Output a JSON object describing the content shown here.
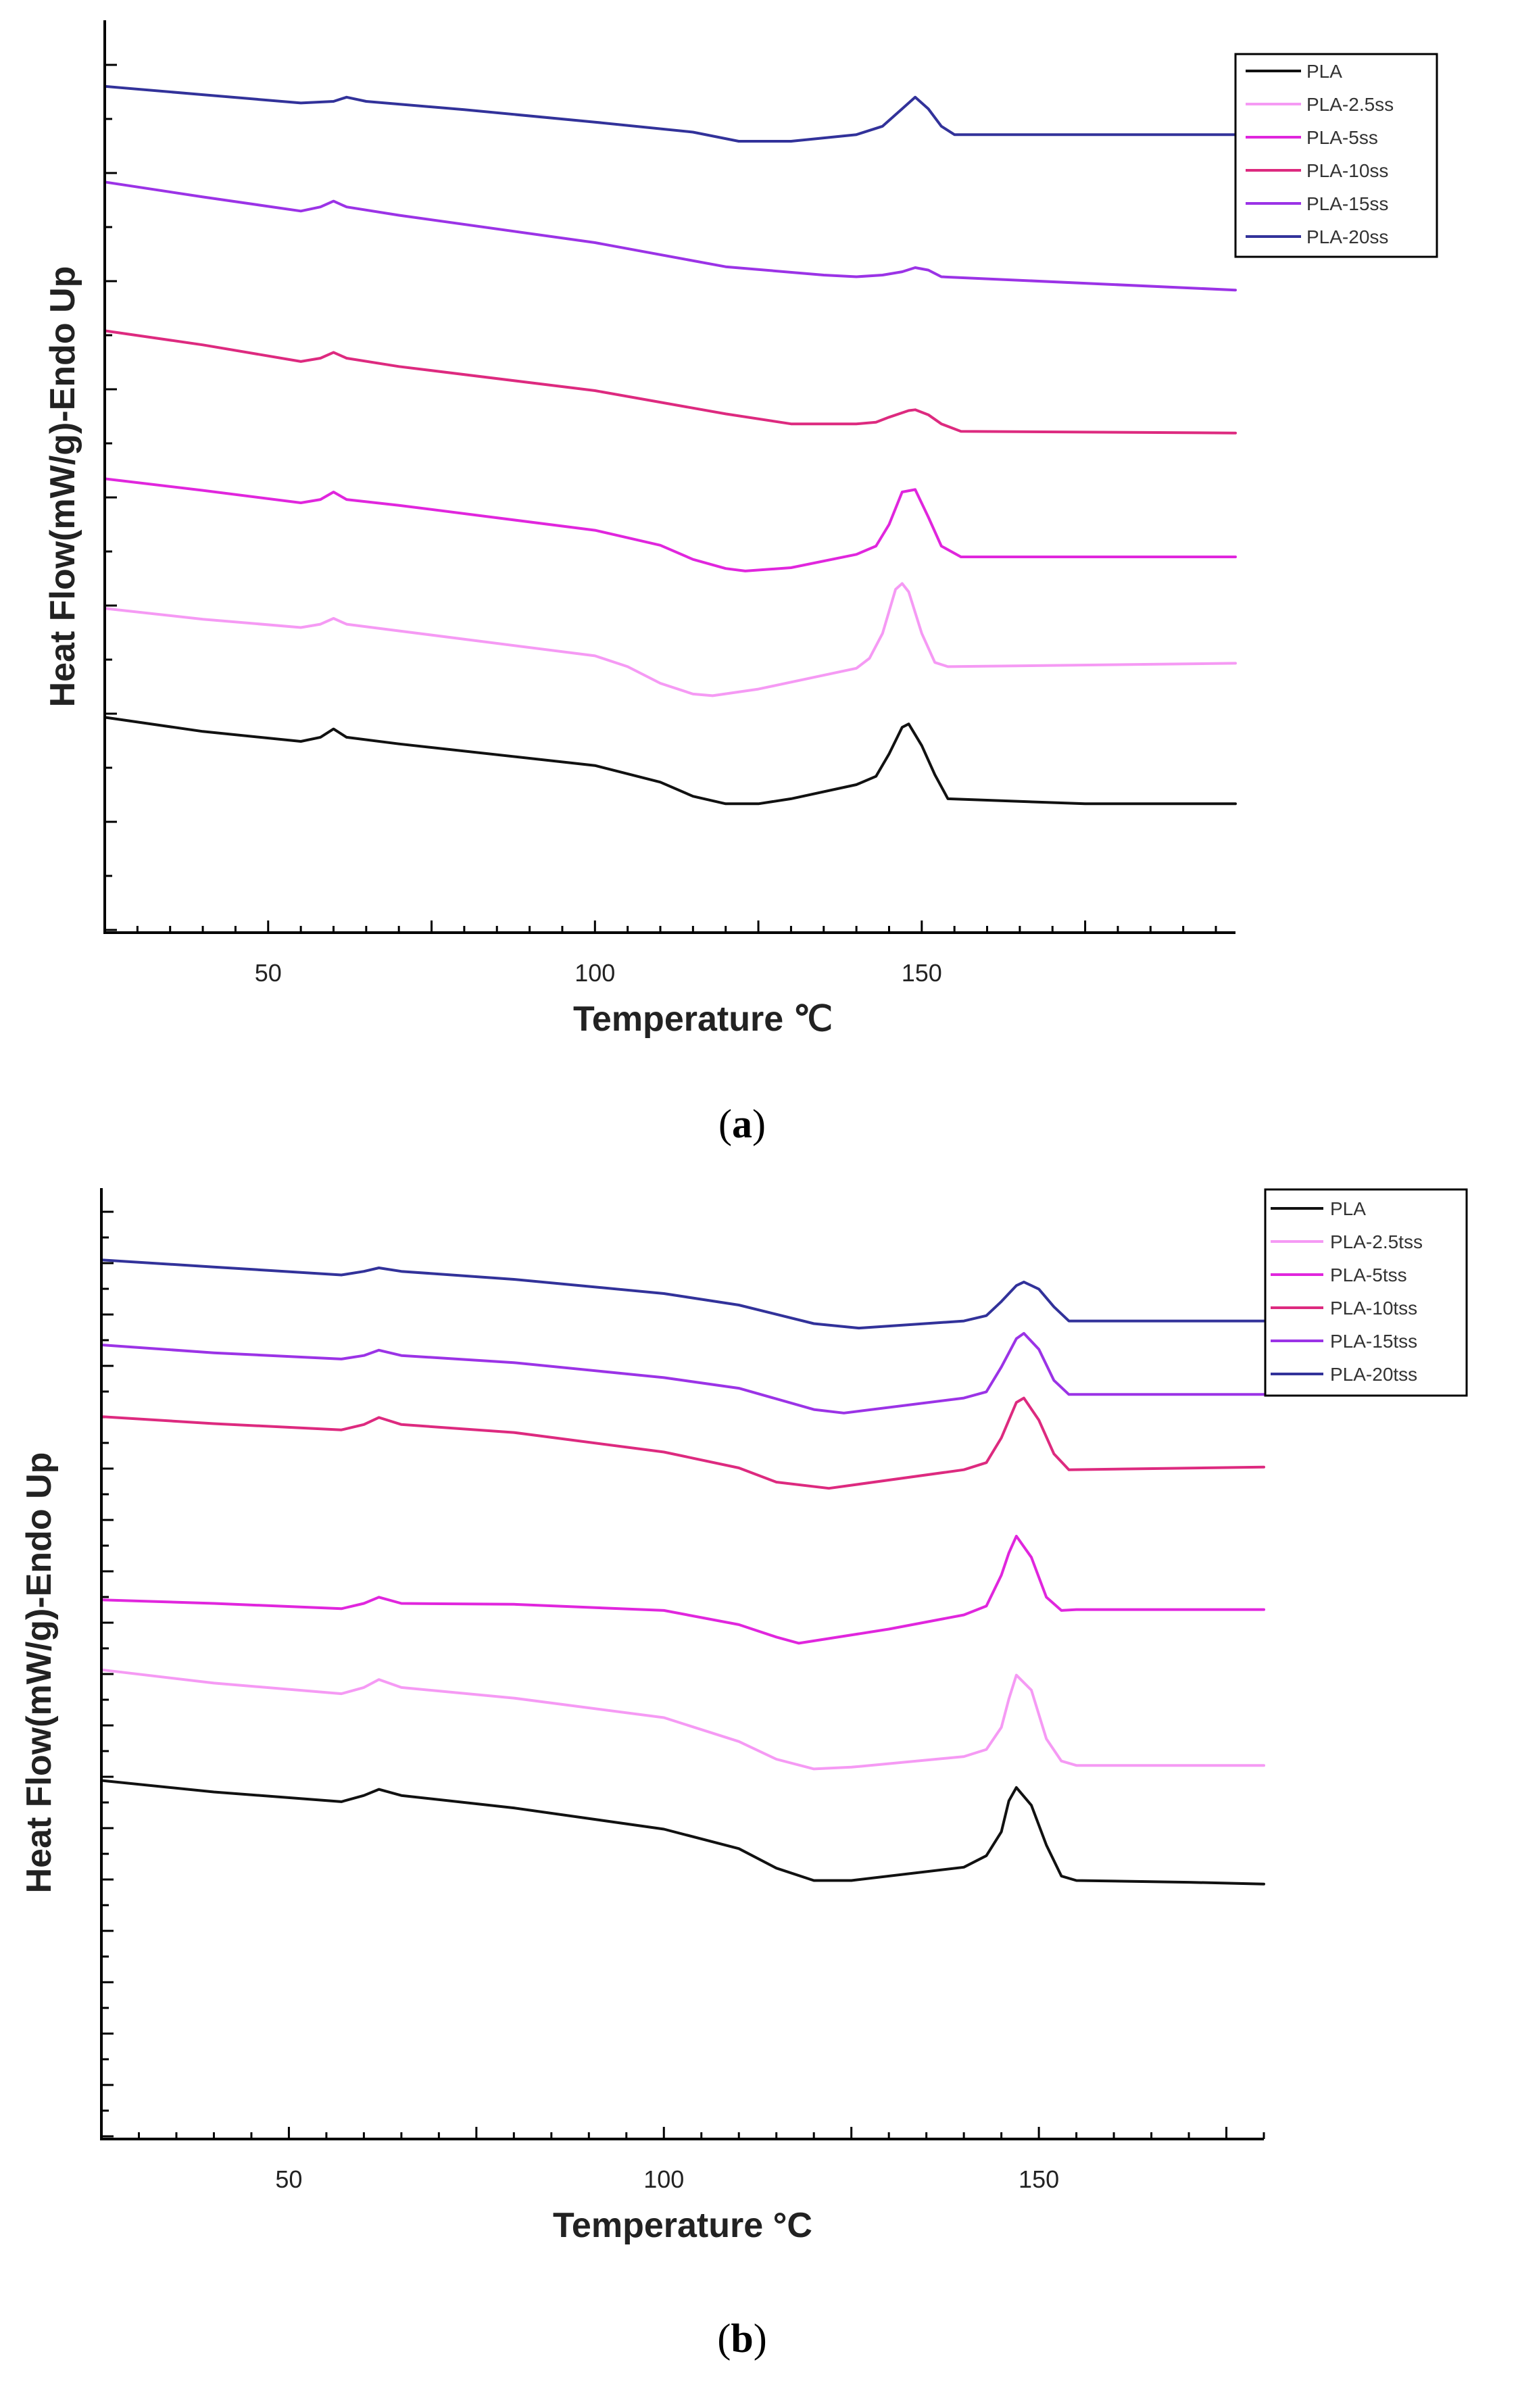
{
  "colors": {
    "PLA": "#111111",
    "PLA-2.5": "#f59af4",
    "PLA-5": "#e026dd",
    "PLA-10": "#dd2a7f",
    "PLA-15": "#9b33e6",
    "PLA-20": "#32329a"
  },
  "chart_data": [
    {
      "panel": "a",
      "panel_label": "a",
      "type": "line",
      "xlabel": "Temperature ℃",
      "ylabel": "Heat Flow(mW/g)-Endo Up",
      "xlim": [
        25,
        198
      ],
      "ylim": [
        0,
        100
      ],
      "x_ticks": [
        50,
        100,
        150
      ],
      "x_tick_labels": [
        "50",
        "100",
        "150"
      ],
      "y_ticks_note": "unlabeled minor ticks",
      "legend_position": "top-right",
      "series": [
        {
          "name": "PLA-20ss",
          "color_key": "PLA-20",
          "x": [
            25,
            40,
            55,
            60,
            62,
            65,
            80,
            100,
            115,
            122,
            130,
            140,
            144,
            147,
            149,
            151,
            153,
            155,
            198
          ],
          "y": [
            95.3,
            94.3,
            93.3,
            93.5,
            94.0,
            93.5,
            92.5,
            91.0,
            89.8,
            88.7,
            88.7,
            89.5,
            90.5,
            92.6,
            94.0,
            92.6,
            90.5,
            89.5,
            89.5
          ]
        },
        {
          "name": "PLA-15ss",
          "color_key": "PLA-15",
          "x": [
            25,
            40,
            55,
            58,
            60,
            62,
            70,
            100,
            120,
            135,
            140,
            144,
            147,
            149,
            151,
            153,
            198
          ],
          "y": [
            83.8,
            82.0,
            80.3,
            80.8,
            81.5,
            80.8,
            79.8,
            76.5,
            73.6,
            72.6,
            72.4,
            72.6,
            73.0,
            73.5,
            73.2,
            72.4,
            70.8
          ]
        },
        {
          "name": "PLA-10ss",
          "color_key": "PLA-10",
          "x": [
            25,
            40,
            55,
            58,
            60,
            62,
            70,
            100,
            120,
            130,
            140,
            143,
            145,
            148,
            149,
            151,
            153,
            156,
            198
          ],
          "y": [
            65.9,
            64.2,
            62.2,
            62.6,
            63.3,
            62.6,
            61.6,
            58.7,
            55.9,
            54.7,
            54.7,
            54.9,
            55.5,
            56.3,
            56.4,
            55.8,
            54.7,
            53.8,
            53.6
          ]
        },
        {
          "name": "PLA-5ss",
          "color_key": "PLA-5",
          "x": [
            25,
            40,
            55,
            58,
            60,
            62,
            70,
            100,
            110,
            115,
            120,
            123,
            130,
            140,
            143,
            145,
            147,
            149,
            151,
            153,
            156,
            198
          ],
          "y": [
            48.1,
            46.7,
            45.2,
            45.6,
            46.5,
            45.6,
            44.9,
            41.9,
            40.1,
            38.4,
            37.3,
            37.0,
            37.4,
            39.0,
            40.0,
            42.6,
            46.5,
            46.8,
            43.5,
            40.0,
            38.7,
            38.7
          ]
        },
        {
          "name": "PLA-2.5ss",
          "color_key": "PLA-2.5",
          "x": [
            25,
            40,
            55,
            58,
            60,
            62,
            70,
            100,
            105,
            110,
            115,
            118,
            125,
            140,
            142,
            144,
            146,
            147,
            148,
            150,
            152,
            154,
            198
          ],
          "y": [
            32.5,
            31.2,
            30.2,
            30.6,
            31.3,
            30.6,
            29.8,
            26.8,
            25.5,
            23.5,
            22.2,
            22.0,
            22.8,
            25.3,
            26.5,
            29.5,
            34.8,
            35.5,
            34.5,
            29.5,
            26.0,
            25.5,
            25.9
          ]
        },
        {
          "name": "PLA",
          "color_key": "PLA",
          "x": [
            25,
            40,
            55,
            58,
            60,
            62,
            70,
            100,
            110,
            115,
            120,
            125,
            130,
            140,
            143,
            145,
            147,
            148,
            150,
            152,
            154,
            175,
            198
          ],
          "y": [
            19.4,
            17.7,
            16.5,
            17.0,
            18.0,
            17.0,
            16.2,
            13.6,
            11.6,
            9.9,
            9.0,
            9.0,
            9.6,
            11.3,
            12.3,
            15.0,
            18.2,
            18.6,
            16.0,
            12.5,
            9.6,
            9.0,
            9.0
          ]
        }
      ]
    },
    {
      "panel": "b",
      "panel_label": "b",
      "type": "line",
      "xlabel": "Temperature °C",
      "ylabel": "Heat Flow(mW/g)-Endo Up",
      "xlim": [
        25,
        180
      ],
      "ylim": [
        0,
        100
      ],
      "x_ticks": [
        50,
        100,
        150
      ],
      "x_tick_labels": [
        "50",
        "100",
        "150"
      ],
      "y_ticks_note": "unlabeled minor ticks",
      "legend_position": "top-right",
      "series": [
        {
          "name": "PLA-20tss",
          "color_key": "PLA-20",
          "x": [
            25,
            40,
            57,
            60,
            62,
            65,
            80,
            100,
            110,
            120,
            126,
            140,
            143,
            145,
            147,
            148,
            150,
            152,
            154,
            180
          ],
          "y": [
            95.1,
            94.3,
            93.4,
            93.8,
            94.2,
            93.8,
            92.9,
            91.3,
            90.0,
            87.9,
            87.4,
            88.2,
            88.8,
            90.4,
            92.2,
            92.6,
            91.8,
            89.8,
            88.2,
            88.2
          ]
        },
        {
          "name": "PLA-15tss",
          "color_key": "PLA-15",
          "x": [
            25,
            40,
            57,
            60,
            62,
            65,
            80,
            100,
            110,
            120,
            124,
            140,
            143,
            145,
            147,
            148,
            150,
            152,
            154,
            180
          ],
          "y": [
            85.5,
            84.6,
            83.9,
            84.3,
            84.9,
            84.3,
            83.5,
            81.8,
            80.6,
            78.2,
            77.8,
            79.5,
            80.2,
            83.0,
            86.2,
            86.8,
            85.0,
            81.5,
            79.9,
            79.9
          ]
        },
        {
          "name": "PLA-10tss",
          "color_key": "PLA-10",
          "x": [
            25,
            40,
            57,
            60,
            62,
            65,
            80,
            100,
            110,
            115,
            122,
            140,
            143,
            145,
            147,
            148,
            150,
            152,
            154,
            180
          ],
          "y": [
            77.4,
            76.6,
            75.9,
            76.5,
            77.3,
            76.5,
            75.6,
            73.4,
            71.6,
            70.0,
            69.3,
            71.4,
            72.2,
            75.0,
            79.0,
            79.5,
            77.0,
            73.2,
            71.4,
            71.7
          ]
        },
        {
          "name": "PLA-5tss",
          "color_key": "PLA-5",
          "x": [
            25,
            40,
            57,
            60,
            62,
            65,
            80,
            100,
            110,
            115,
            118,
            130,
            140,
            143,
            145,
            146,
            147,
            149,
            151,
            153,
            155,
            180
          ],
          "y": [
            56.7,
            56.3,
            55.7,
            56.3,
            57.0,
            56.3,
            56.2,
            55.5,
            53.9,
            52.5,
            51.8,
            53.4,
            55.0,
            56.0,
            59.5,
            62.0,
            63.9,
            61.5,
            57.0,
            55.5,
            55.6,
            55.6
          ]
        },
        {
          "name": "PLA-2.5tss",
          "color_key": "PLA-2.5",
          "x": [
            25,
            40,
            57,
            60,
            62,
            65,
            80,
            100,
            110,
            115,
            120,
            125,
            140,
            143,
            145,
            146,
            147,
            149,
            151,
            153,
            155,
            180
          ],
          "y": [
            48.8,
            47.3,
            46.1,
            46.8,
            47.7,
            46.8,
            45.6,
            43.4,
            40.7,
            38.7,
            37.6,
            37.8,
            39.0,
            39.8,
            42.3,
            45.5,
            48.2,
            46.5,
            41.0,
            38.5,
            38.0,
            38.0
          ]
        },
        {
          "name": "PLA",
          "color_key": "PLA",
          "x": [
            25,
            40,
            57,
            60,
            62,
            65,
            80,
            100,
            110,
            115,
            120,
            125,
            140,
            143,
            145,
            146,
            147,
            149,
            151,
            153,
            155,
            170,
            180
          ],
          "y": [
            36.3,
            35.0,
            33.9,
            34.6,
            35.3,
            34.6,
            33.2,
            30.8,
            28.6,
            26.4,
            25.0,
            25.0,
            26.5,
            27.8,
            30.5,
            34.0,
            35.5,
            33.5,
            29.0,
            25.5,
            25.0,
            24.8,
            24.6
          ]
        }
      ]
    }
  ],
  "legends": [
    {
      "panel": "a",
      "entries": [
        "PLA",
        "PLA-2.5ss",
        "PLA-5ss",
        "PLA-10ss",
        "PLA-15ss",
        "PLA-20ss"
      ]
    },
    {
      "panel": "b",
      "entries": [
        "PLA",
        "PLA-2.5tss",
        "PLA-5tss",
        "PLA-10tss",
        "PLA-15tss",
        "PLA-20tss"
      ]
    }
  ]
}
